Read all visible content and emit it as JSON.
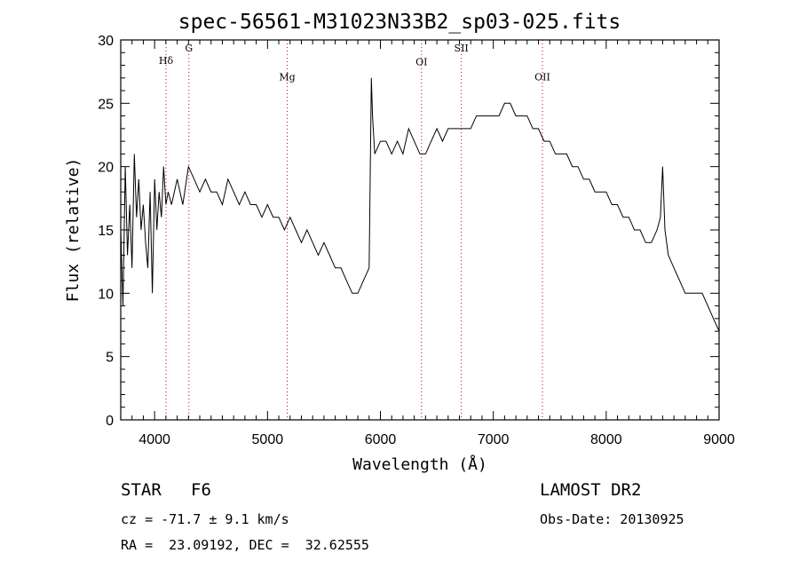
{
  "header": {
    "title": "spec-56561-M31023N33B2_sp03-025.fits"
  },
  "footer": {
    "class_label": "STAR",
    "subclass_label": "F6",
    "survey_label": "LAMOST DR2",
    "cz_text": "cz = -71.7 ± 9.1 km/s",
    "obs_date_text": "Obs-Date: 20130925",
    "radec_text": "RA =  23.09192, DEC =  32.62555"
  },
  "chart_data": {
    "type": "line",
    "title": "spec-56561-M31023N33B2_sp03-025.fits",
    "xlabel": "Wavelength (Å)",
    "ylabel": "Flux (relative)",
    "xlim": [
      3700,
      9000
    ],
    "ylim": [
      0,
      30
    ],
    "xticks": [
      4000,
      5000,
      6000,
      7000,
      8000,
      9000
    ],
    "yticks": [
      0,
      5,
      10,
      15,
      20,
      25,
      30
    ],
    "grid": false,
    "line_color": "#000000",
    "marker_color": "#cc0000",
    "lines": [
      {
        "label": "Hδ",
        "x": 4101,
        "label_flux": 28.1
      },
      {
        "label": "G",
        "x": 4304,
        "label_flux": 29.1
      },
      {
        "label": "Mg",
        "x": 5175,
        "label_flux": 26.8
      },
      {
        "label": "OI",
        "x": 6364,
        "label_flux": 28.0
      },
      {
        "label": "SII",
        "x": 6717,
        "label_flux": 29.1
      },
      {
        "label": "OII",
        "x": 7435,
        "label_flux": 26.8
      }
    ],
    "series": [
      {
        "x": [
          3700,
          3720,
          3740,
          3760,
          3780,
          3800,
          3820,
          3840,
          3860,
          3880,
          3900,
          3920,
          3940,
          3960,
          3980,
          4000,
          4020,
          4040,
          4060,
          4080,
          4100,
          4120,
          4150,
          4200,
          4250,
          4300,
          4350,
          4400,
          4450,
          4500,
          4550,
          4600,
          4650,
          4700,
          4750,
          4800,
          4850,
          4900,
          4950,
          5000,
          5050,
          5100,
          5150,
          5200,
          5250,
          5300,
          5350,
          5400,
          5450,
          5500,
          5550,
          5600,
          5650,
          5700,
          5750,
          5800,
          5850,
          5900,
          5920,
          5930,
          5950,
          6000,
          6050,
          6100,
          6150,
          6200,
          6250,
          6300,
          6350,
          6400,
          6450,
          6500,
          6550,
          6600,
          6650,
          6700,
          6750,
          6800,
          6850,
          6900,
          6950,
          7000,
          7050,
          7100,
          7150,
          7200,
          7250,
          7300,
          7350,
          7400,
          7450,
          7500,
          7550,
          7600,
          7650,
          7700,
          7750,
          7800,
          7850,
          7900,
          7950,
          8000,
          8050,
          8100,
          8150,
          8200,
          8250,
          8300,
          8350,
          8400,
          8450,
          8480,
          8500,
          8520,
          8550,
          8600,
          8650,
          8700,
          8750,
          8800,
          8850,
          8900,
          8950,
          9000
        ],
        "y": [
          15,
          9,
          20,
          13,
          17,
          12,
          21,
          16,
          19,
          15,
          17,
          14,
          12,
          18,
          10,
          19,
          15,
          18,
          16,
          20,
          17,
          18,
          17,
          19,
          17,
          20,
          19,
          18,
          19,
          18,
          18,
          17,
          19,
          18,
          17,
          18,
          17,
          17,
          16,
          17,
          16,
          16,
          15,
          16,
          15,
          14,
          15,
          14,
          13,
          14,
          13,
          12,
          12,
          11,
          10,
          10,
          11,
          12,
          27,
          24,
          21,
          22,
          22,
          21,
          22,
          21,
          23,
          22,
          21,
          21,
          22,
          23,
          22,
          23,
          23,
          23,
          23,
          23,
          24,
          24,
          24,
          24,
          24,
          25,
          25,
          24,
          24,
          24,
          23,
          23,
          22,
          22,
          21,
          21,
          21,
          20,
          20,
          19,
          19,
          18,
          18,
          18,
          17,
          17,
          16,
          16,
          15,
          15,
          14,
          14,
          15,
          16,
          20,
          15,
          13,
          12,
          11,
          10,
          10,
          10,
          10,
          9,
          8,
          7
        ]
      }
    ]
  }
}
